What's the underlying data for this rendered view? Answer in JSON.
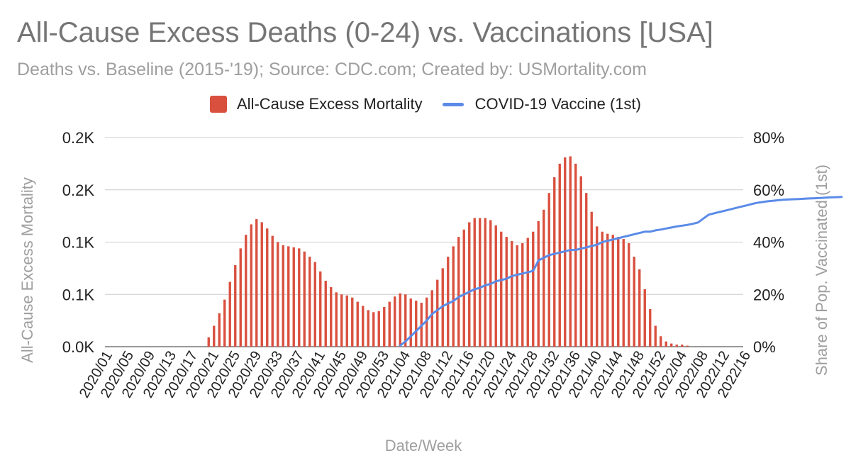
{
  "title": "All-Cause Excess Deaths (0-24) vs. Vaccinations [USA]",
  "subtitle": "Deaths vs. Baseline (2015-'19); Source: CDC.com; Created by: USMortality.com",
  "legend": {
    "bar_label": "All-Cause Excess Mortality",
    "line_label": "COVID-19 Vaccine (1st)"
  },
  "colors": {
    "bar": "#d9503f",
    "line": "#5b8be8",
    "grid": "#cccccc",
    "axis_text": "#9e9e9e"
  },
  "chart_data": {
    "type": "bar+line",
    "title": "All-Cause Excess Deaths (0-24) vs. Vaccinations [USA]",
    "xlabel": "Date/Week",
    "ylabel_left": "All-Cause Excess Mortality",
    "ylabel_right": "Share of Pop. Vaccinated (1st)",
    "y_left_ticks": [
      "0.0K",
      "0.1K",
      "0.1K",
      "0.2K",
      "0.2K"
    ],
    "y_left_range": [
      0,
      200
    ],
    "y_right_ticks": [
      "0%",
      "20%",
      "40%",
      "60%",
      "80%"
    ],
    "y_right_range": [
      0,
      0.8
    ],
    "x_ticks": [
      "2020/01",
      "2020/05",
      "2020/09",
      "2020/13",
      "2020/17",
      "2020/21",
      "2020/25",
      "2020/29",
      "2020/33",
      "2020/37",
      "2020/41",
      "2020/45",
      "2020/49",
      "2020/53",
      "2021/04",
      "2021/08",
      "2021/12",
      "2021/16",
      "2021/20",
      "2021/24",
      "2021/28",
      "2021/32",
      "2021/36",
      "2021/40",
      "2021/44",
      "2021/48",
      "2021/52",
      "2022/04",
      "2022/08",
      "2022/12",
      "2022/16"
    ],
    "grid": true,
    "legend_position": "top",
    "series": [
      {
        "name": "All-Cause Excess Mortality",
        "type": "bar",
        "values": [
          0,
          0,
          0,
          0,
          0,
          0,
          0,
          0,
          0,
          0,
          0,
          0,
          0,
          0,
          0,
          0,
          0,
          0,
          0,
          9,
          20,
          32,
          45,
          62,
          78,
          94,
          107,
          117,
          122,
          119,
          113,
          106,
          100,
          97,
          96,
          95,
          94,
          91,
          86,
          81,
          72,
          63,
          57,
          52,
          50,
          49,
          47,
          43,
          39,
          35,
          33,
          34,
          38,
          43,
          48,
          51,
          50,
          46,
          44,
          42,
          47,
          54,
          64,
          75,
          86,
          96,
          105,
          112,
          119,
          123,
          123,
          123,
          121,
          116,
          110,
          105,
          101,
          97,
          99,
          104,
          110,
          120,
          131,
          147,
          162,
          175,
          181,
          182,
          175,
          163,
          147,
          129,
          115,
          110,
          108,
          107,
          105,
          103,
          99,
          86,
          74,
          55,
          36,
          20,
          10,
          5,
          3,
          2,
          2,
          1,
          0,
          0,
          0,
          0,
          0,
          0,
          0,
          0,
          0,
          0
        ]
      },
      {
        "name": "COVID-19 Vaccine (1st)",
        "type": "line",
        "x_start_index": 55,
        "values": [
          0.004,
          0.02,
          0.04,
          0.06,
          0.08,
          0.1,
          0.125,
          0.14,
          0.155,
          0.165,
          0.175,
          0.19,
          0.2,
          0.21,
          0.22,
          0.225,
          0.235,
          0.24,
          0.25,
          0.255,
          0.26,
          0.27,
          0.275,
          0.28,
          0.285,
          0.29,
          0.33,
          0.34,
          0.35,
          0.355,
          0.36,
          0.365,
          0.37,
          0.37,
          0.375,
          0.38,
          0.385,
          0.39,
          0.4,
          0.405,
          0.41,
          0.415,
          0.42,
          0.425,
          0.43,
          0.435,
          0.44,
          0.44,
          0.445,
          0.448,
          0.452,
          0.456,
          0.46,
          0.463,
          0.466,
          0.47,
          0.475,
          0.49,
          0.505,
          0.51,
          0.515,
          0.52,
          0.525,
          0.53,
          0.535,
          0.54,
          0.545,
          0.55,
          0.553,
          0.556,
          0.558,
          0.56,
          0.562,
          0.563,
          0.564,
          0.565,
          0.566,
          0.567,
          0.568,
          0.569,
          0.57,
          0.571,
          0.572,
          0.573
        ]
      }
    ]
  }
}
